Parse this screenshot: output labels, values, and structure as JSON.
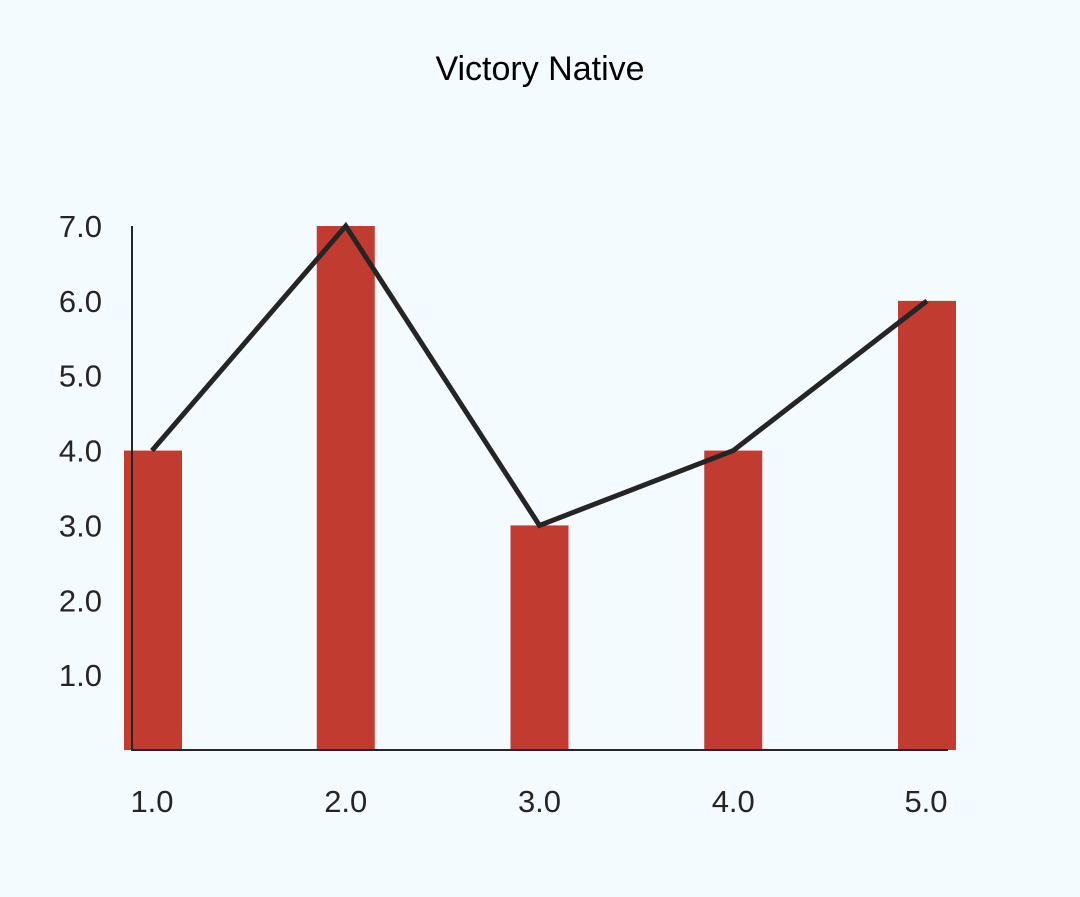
{
  "title": "Victory Native",
  "colors": {
    "background": "#f4fbfe",
    "bar": "#c23b31",
    "line": "#252525",
    "axis": "#252525"
  },
  "chart_data": {
    "type": "bar",
    "title": "Victory Native",
    "xlabel": "",
    "ylabel": "",
    "categories": [
      "1.0",
      "2.0",
      "3.0",
      "4.0",
      "5.0"
    ],
    "x": [
      1,
      2,
      3,
      4,
      5
    ],
    "series": [
      {
        "name": "bar",
        "type": "bar",
        "values": [
          4,
          7,
          3,
          4,
          6
        ]
      },
      {
        "name": "line",
        "type": "line",
        "values": [
          4,
          7,
          3,
          4,
          6
        ]
      }
    ],
    "y_ticks": [
      "1.0",
      "2.0",
      "3.0",
      "4.0",
      "5.0",
      "6.0",
      "7.0"
    ],
    "x_ticks": [
      "1.0",
      "2.0",
      "3.0",
      "4.0",
      "5.0"
    ],
    "ylim": [
      0,
      7
    ],
    "xlim": [
      1,
      5
    ],
    "grid": false,
    "legend": null
  }
}
